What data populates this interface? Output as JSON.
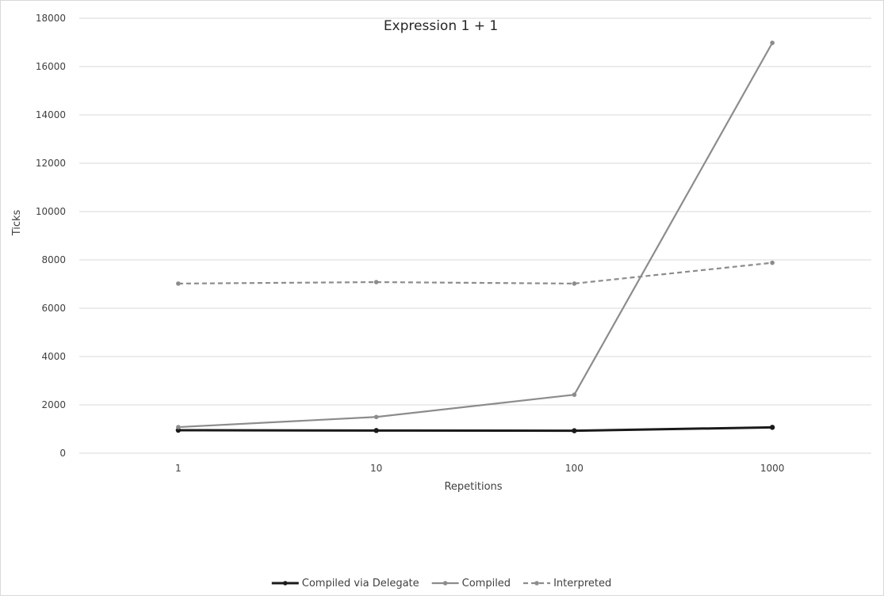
{
  "chart_data": {
    "type": "line",
    "title": "Expression 1 + 1",
    "xlabel": "Repetitions",
    "ylabel": "Ticks",
    "categories": [
      "1",
      "10",
      "100",
      "1000"
    ],
    "ylim": [
      0,
      18000
    ],
    "yticks": [
      0,
      2000,
      4000,
      6000,
      8000,
      10000,
      12000,
      14000,
      16000,
      18000
    ],
    "grid": true,
    "legend_position": "bottom",
    "series": [
      {
        "name": "Compiled via Delegate",
        "values": [
          950,
          940,
          930,
          1070
        ],
        "color": "#1a1a1a",
        "dash": "solid",
        "width": 3
      },
      {
        "name": "Compiled",
        "values": [
          1080,
          1500,
          2420,
          16980
        ],
        "color": "#8c8c8c",
        "dash": "solid",
        "width": 2.2
      },
      {
        "name": "Interpreted",
        "values": [
          7020,
          7080,
          7020,
          7880
        ],
        "color": "#8c8c8c",
        "dash": "dashed",
        "width": 2.2
      }
    ]
  }
}
